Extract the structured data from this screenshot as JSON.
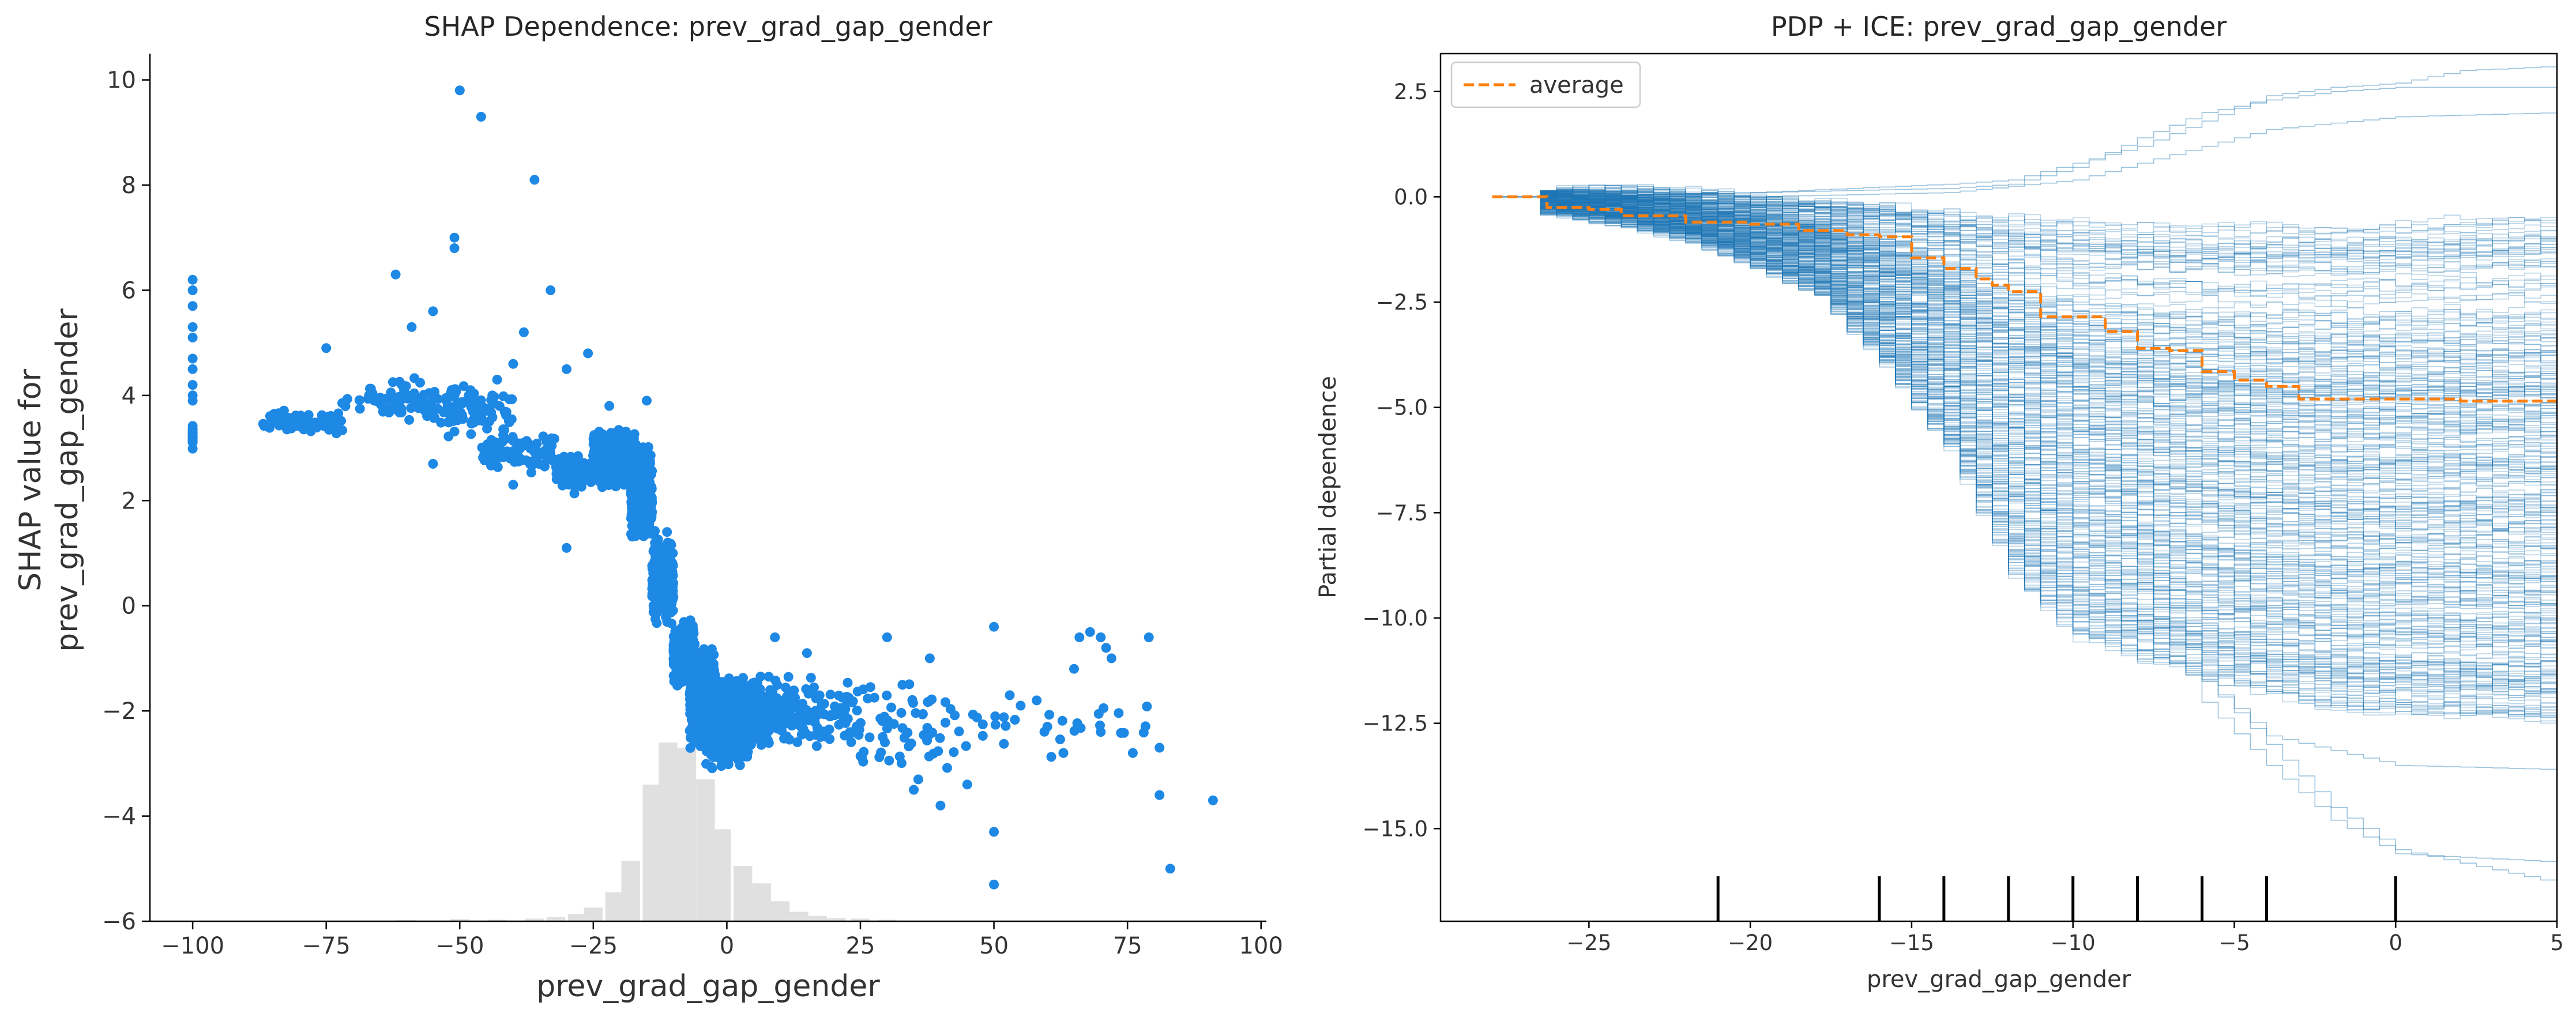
{
  "chart_data": [
    {
      "type": "scatter",
      "title": "SHAP Dependence: prev_grad_gap_gender",
      "xlabel": "prev_grad_gap_gender",
      "ylabel_lines": [
        "SHAP value for",
        "prev_grad_gap_gender"
      ],
      "xlim": [
        -108,
        101
      ],
      "ylim": [
        -6,
        10.5
      ],
      "xticks": [
        -100,
        -75,
        -50,
        -25,
        0,
        25,
        50,
        75,
        100
      ],
      "xtick_labels": [
        "−100",
        "−75",
        "−50",
        "−25",
        "0",
        "25",
        "50",
        "75",
        "100"
      ],
      "yticks": [
        -6,
        -4,
        -2,
        0,
        2,
        4,
        6,
        8,
        10
      ],
      "ytick_labels": [
        "−6",
        "−4",
        "−2",
        "0",
        "2",
        "4",
        "6",
        "8",
        "10"
      ],
      "point_color": "#1e88e5",
      "histogram_color": "#e0e0e0",
      "histogram": {
        "bin_width": 3.5,
        "bins": [
          {
            "x": -102,
            "h": 0.01
          },
          {
            "x": -60,
            "h": 0.02
          },
          {
            "x": -50,
            "h": 0.04
          },
          {
            "x": -43,
            "h": 0.03
          },
          {
            "x": -36,
            "h": 0.05
          },
          {
            "x": -32,
            "h": 0.08
          },
          {
            "x": -28,
            "h": 0.14
          },
          {
            "x": -25,
            "h": 0.26
          },
          {
            "x": -21,
            "h": 0.55
          },
          {
            "x": -18,
            "h": 1.15
          },
          {
            "x": -14,
            "h": 2.6
          },
          {
            "x": -11,
            "h": 3.4
          },
          {
            "x": -7.5,
            "h": 3.3
          },
          {
            "x": -4,
            "h": 2.7
          },
          {
            "x": -1,
            "h": 1.75
          },
          {
            "x": 3,
            "h": 1.05
          },
          {
            "x": 6.5,
            "h": 0.72
          },
          {
            "x": 10,
            "h": 0.38
          },
          {
            "x": 13.5,
            "h": 0.18
          },
          {
            "x": 17,
            "h": 0.1
          },
          {
            "x": 20.5,
            "h": 0.06
          },
          {
            "x": 25,
            "h": 0.05
          },
          {
            "x": 30,
            "h": 0.03
          }
        ]
      },
      "clusters": [
        {
          "x": [
            -100,
            -100
          ],
          "y": [
            2.8,
            3.6
          ],
          "n": 24
        },
        {
          "x": [
            -87,
            -72
          ],
          "y": [
            3.2,
            3.8
          ],
          "n": 70
        },
        {
          "x": [
            -72,
            -55
          ],
          "y": [
            3.4,
            4.4
          ],
          "n": 55
        },
        {
          "x": [
            -55,
            -40
          ],
          "y": [
            3.1,
            4.3
          ],
          "n": 90
        },
        {
          "x": [
            -46,
            -32
          ],
          "y": [
            2.4,
            3.5
          ],
          "n": 90
        },
        {
          "x": [
            -32,
            -22
          ],
          "y": [
            2.1,
            3.0
          ],
          "n": 150
        },
        {
          "x": [
            -25,
            -17
          ],
          "y": [
            2.2,
            3.5
          ],
          "n": 400
        },
        {
          "x": [
            -18,
            -14
          ],
          "y": [
            1.0,
            3.2
          ],
          "n": 350
        },
        {
          "x": [
            -14,
            -10
          ],
          "y": [
            -0.5,
            1.6
          ],
          "n": 300
        },
        {
          "x": [
            -10,
            -6
          ],
          "y": [
            -1.6,
            -0.2
          ],
          "n": 250
        },
        {
          "x": [
            -7,
            -2
          ],
          "y": [
            -2.9,
            -0.7
          ],
          "n": 500
        },
        {
          "x": [
            -4,
            4
          ],
          "y": [
            -3.2,
            -1.2
          ],
          "n": 600
        },
        {
          "x": [
            2,
            12
          ],
          "y": [
            -2.9,
            -1.2
          ],
          "n": 200
        },
        {
          "x": [
            12,
            25
          ],
          "y": [
            -2.8,
            -1.2
          ],
          "n": 90
        },
        {
          "x": [
            25,
            45
          ],
          "y": [
            -3.6,
            -1.0
          ],
          "n": 60
        },
        {
          "x": [
            45,
            80
          ],
          "y": [
            -3.0,
            -1.4
          ],
          "n": 28
        }
      ],
      "points": [
        {
          "x": -100,
          "y": 6.2
        },
        {
          "x": -100,
          "y": 6.0
        },
        {
          "x": -100,
          "y": 5.7
        },
        {
          "x": -100,
          "y": 5.3
        },
        {
          "x": -100,
          "y": 5.1
        },
        {
          "x": -100,
          "y": 4.7
        },
        {
          "x": -100,
          "y": 4.5
        },
        {
          "x": -100,
          "y": 4.2
        },
        {
          "x": -100,
          "y": 4.0
        },
        {
          "x": -100,
          "y": 3.9
        },
        {
          "x": -62,
          "y": 6.3
        },
        {
          "x": -59,
          "y": 5.3
        },
        {
          "x": -55,
          "y": 5.6
        },
        {
          "x": -51,
          "y": 6.8
        },
        {
          "x": -51,
          "y": 7.0
        },
        {
          "x": -50,
          "y": 9.8
        },
        {
          "x": -46,
          "y": 9.3
        },
        {
          "x": -43,
          "y": 4.3
        },
        {
          "x": -40,
          "y": 4.6
        },
        {
          "x": -38,
          "y": 5.2
        },
        {
          "x": -36,
          "y": 8.1
        },
        {
          "x": -33,
          "y": 6.0
        },
        {
          "x": -30,
          "y": 4.5
        },
        {
          "x": -26,
          "y": 4.8
        },
        {
          "x": -22,
          "y": 3.8
        },
        {
          "x": -15,
          "y": 3.9
        },
        {
          "x": -75,
          "y": 4.9
        },
        {
          "x": -67,
          "y": 4.0
        },
        {
          "x": -66,
          "y": 3.9
        },
        {
          "x": -48,
          "y": 4.1
        },
        {
          "x": -30,
          "y": 1.1
        },
        {
          "x": -55,
          "y": 2.7
        },
        {
          "x": -40,
          "y": 2.3
        },
        {
          "x": 9,
          "y": -0.6
        },
        {
          "x": 15,
          "y": -0.9
        },
        {
          "x": 30,
          "y": -0.6
        },
        {
          "x": 38,
          "y": -1.0
        },
        {
          "x": 50,
          "y": -0.4
        },
        {
          "x": 55,
          "y": -1.9
        },
        {
          "x": 58,
          "y": -1.8
        },
        {
          "x": 60,
          "y": -2.3
        },
        {
          "x": 63,
          "y": -2.8
        },
        {
          "x": 65,
          "y": -1.2
        },
        {
          "x": 66,
          "y": -0.6
        },
        {
          "x": 68,
          "y": -0.5
        },
        {
          "x": 70,
          "y": -0.6
        },
        {
          "x": 71,
          "y": -0.8
        },
        {
          "x": 72,
          "y": -1.0
        },
        {
          "x": 79,
          "y": -0.6
        },
        {
          "x": 70,
          "y": -2.4
        },
        {
          "x": 76,
          "y": -2.8
        },
        {
          "x": 81,
          "y": -2.7
        },
        {
          "x": 81,
          "y": -3.6
        },
        {
          "x": 83,
          "y": -5.0
        },
        {
          "x": 91,
          "y": -3.7
        },
        {
          "x": 50,
          "y": -4.3
        },
        {
          "x": 50,
          "y": -5.3
        },
        {
          "x": 40,
          "y": -3.8
        },
        {
          "x": 45,
          "y": -3.4
        },
        {
          "x": 35,
          "y": -3.5
        }
      ]
    },
    {
      "type": "line",
      "title": "PDP + ICE: prev_grad_gap_gender",
      "xlabel": "prev_grad_gap_gender",
      "ylabel": "Partial dependence",
      "xlim": [
        -29.6,
        5
      ],
      "ylim": [
        -17.2,
        3.4
      ],
      "xticks": [
        -25,
        -20,
        -15,
        -10,
        -5,
        0,
        5
      ],
      "xtick_labels": [
        "−25",
        "−20",
        "−15",
        "−10",
        "−5",
        "0",
        "5"
      ],
      "yticks": [
        2.5,
        0,
        -2.5,
        -5,
        -7.5,
        -10,
        -12.5,
        -15
      ],
      "ytick_labels": [
        "2.5",
        "0.0",
        "−2.5",
        "−5.0",
        "−7.5",
        "−10.0",
        "−12.5",
        "−15.0"
      ],
      "legend": {
        "label": "average",
        "placement": "upper-left"
      },
      "average_color": "#ff7f0e",
      "ice_color": "#1f77b4",
      "rug_x": [
        -21,
        -16,
        -14,
        -12,
        -10,
        -8,
        -6,
        -4,
        0
      ],
      "average": {
        "x": [
          -28,
          -26.5,
          -26.3,
          -25,
          -24,
          -22,
          -20,
          -18.5,
          -17,
          -16,
          -15,
          -14,
          -13,
          -12.5,
          -12,
          -11,
          -10,
          -9,
          -8,
          -7,
          -6,
          -5,
          -4,
          -3,
          -2,
          0,
          2,
          5
        ],
        "y": [
          0,
          0,
          -0.25,
          -0.3,
          -0.45,
          -0.6,
          -0.65,
          -0.8,
          -0.9,
          -0.95,
          -1.45,
          -1.7,
          -1.95,
          -2.1,
          -2.25,
          -2.85,
          -2.85,
          -3.2,
          -3.6,
          -3.65,
          -4.15,
          -4.35,
          -4.5,
          -4.8,
          -4.8,
          -4.8,
          -4.85,
          -4.8
        ]
      },
      "ice_band": {
        "lower": [
          -0.3,
          -0.6,
          -1.0,
          -1.6,
          -2.3,
          -4.0,
          -6.0,
          -9.0,
          -10.5,
          -11.5,
          -12.2,
          -12.5
        ],
        "upper": [
          0.2,
          0.2,
          0.1,
          0,
          -0.1,
          -0.2,
          -0.3,
          -0.4,
          -0.5,
          -0.6,
          -0.5,
          -0.3
        ],
        "x": [
          -26.5,
          -24,
          -22,
          -20,
          -18,
          -16,
          -14,
          -12,
          -10,
          -6,
          -2,
          5
        ]
      },
      "outlier_curves": [
        {
          "x": [
            -26.5,
            -20,
            -14,
            -12,
            -10,
            -8,
            -6,
            -4,
            -2,
            0,
            2,
            5
          ],
          "y": [
            0,
            0.1,
            0.3,
            0.4,
            0.8,
            1.2,
            1.8,
            2.4,
            2.6,
            2.7,
            3.0,
            3.1
          ]
        },
        {
          "x": [
            -26.5,
            -20,
            -14,
            -12,
            -10,
            -8,
            -6,
            -4,
            -2,
            0,
            5
          ],
          "y": [
            0,
            0.1,
            0.2,
            0.3,
            0.7,
            1.4,
            2.0,
            2.3,
            2.5,
            2.6,
            2.6
          ]
        },
        {
          "x": [
            -26.5,
            -20,
            -14,
            -10,
            -8,
            -6,
            -4,
            0,
            5
          ],
          "y": [
            0,
            0,
            0.1,
            0.4,
            0.8,
            1.2,
            1.6,
            1.9,
            2.0
          ]
        },
        {
          "x": [
            -26.5,
            -16,
            -12,
            -10,
            -8,
            -6,
            -4,
            -2,
            0,
            5
          ],
          "y": [
            0,
            -0.2,
            -1.5,
            -4.0,
            -8.0,
            -11.5,
            -13.0,
            -14.5,
            -15.5,
            -16.3
          ]
        },
        {
          "x": [
            -26.5,
            -16,
            -12,
            -10,
            -8,
            -6,
            -4,
            -2,
            0,
            5
          ],
          "y": [
            0,
            -0.3,
            -2.0,
            -5.0,
            -9.0,
            -12.0,
            -13.5,
            -14.8,
            -15.6,
            -15.8
          ]
        },
        {
          "x": [
            -26.5,
            -16,
            -12,
            -10,
            -8,
            -6,
            -4,
            0,
            5
          ],
          "y": [
            0,
            -0.3,
            -1.8,
            -4.5,
            -8.5,
            -11.5,
            -12.8,
            -13.5,
            -13.6
          ]
        }
      ]
    }
  ]
}
